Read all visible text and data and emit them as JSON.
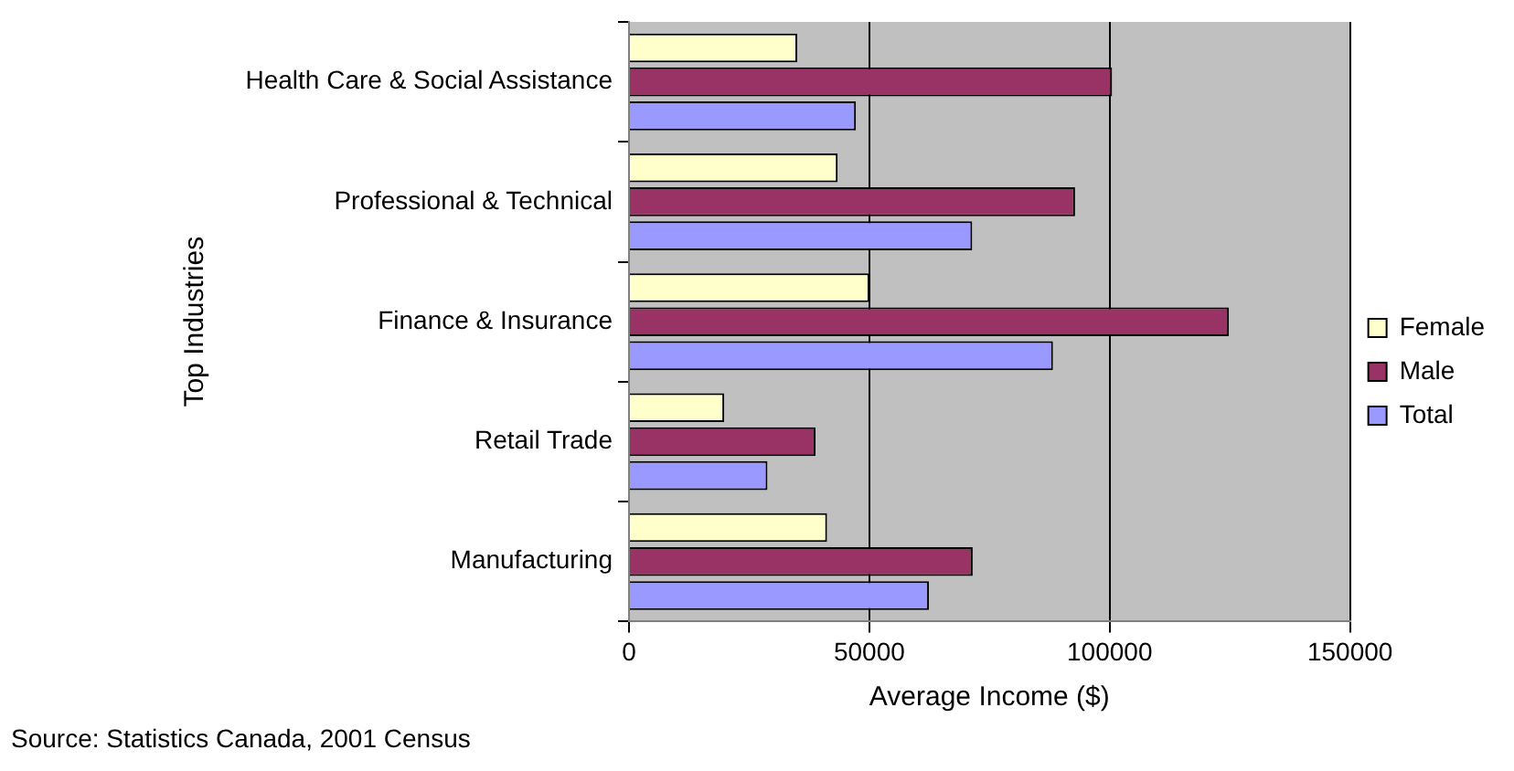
{
  "chart_data": {
    "type": "bar",
    "orientation": "horizontal",
    "categories": [
      "Health Care & Social Assistance",
      "Professional & Technical",
      "Finance & Insurance",
      "Retail Trade",
      "Manufacturing"
    ],
    "series": [
      {
        "name": "Female",
        "color": "#ffffcc",
        "values": [
          35000,
          43400,
          50000,
          19800,
          41200
        ]
      },
      {
        "name": "Male",
        "color": "#993366",
        "values": [
          100500,
          92800,
          124800,
          38800,
          71500
        ]
      },
      {
        "name": "Total",
        "color": "#9999ff",
        "values": [
          47200,
          71400,
          88200,
          28800,
          62400
        ]
      }
    ],
    "xlim": [
      0,
      150000
    ],
    "xticks": [
      0,
      50000,
      100000,
      150000
    ],
    "xlabel": "Average Income ($)",
    "ylabel": "Top Industries",
    "grid": "x",
    "legend": "right",
    "annotations": [
      "Source: Statistics Canada, 2001 Census"
    ]
  }
}
